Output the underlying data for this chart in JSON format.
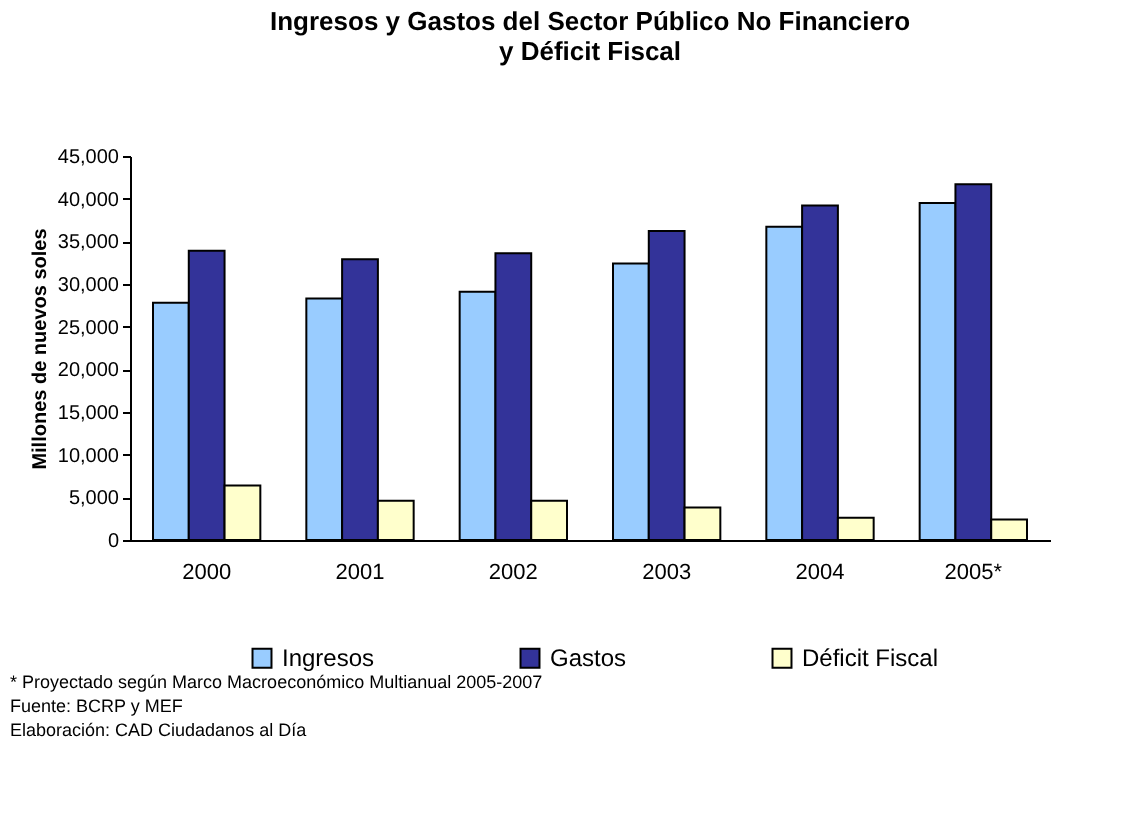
{
  "chart_data": {
    "type": "bar",
    "title": "Ingresos y Gastos del Sector Público No Financiero\ny Déficit Fiscal",
    "ylabel": "Millones de nuevos soles",
    "categories": [
      "2000",
      "2001",
      "2002",
      "2003",
      "2004",
      "2005*"
    ],
    "series": [
      {
        "name": "Ingresos",
        "color": "#99ccff",
        "values": [
          27800,
          28300,
          29100,
          32400,
          36700,
          39500
        ]
      },
      {
        "name": "Gastos",
        "color": "#333399",
        "values": [
          33900,
          32900,
          33600,
          36200,
          39200,
          41700
        ]
      },
      {
        "name": "Déficit Fiscal",
        "color": "#ffffcc",
        "values": [
          6400,
          4600,
          4600,
          3800,
          2600,
          2400
        ]
      }
    ],
    "ylim": [
      0,
      45000
    ],
    "yticks": [
      {
        "value": 0,
        "label": "0"
      },
      {
        "value": 5000,
        "label": "5,000"
      },
      {
        "value": 10000,
        "label": "10,000"
      },
      {
        "value": 15000,
        "label": "15,000"
      },
      {
        "value": 20000,
        "label": "20,000"
      },
      {
        "value": 25000,
        "label": "25,000"
      },
      {
        "value": 30000,
        "label": "30,000"
      },
      {
        "value": 35000,
        "label": "35,000"
      },
      {
        "value": 40000,
        "label": "40,000"
      },
      {
        "value": 45000,
        "label": "45,000"
      }
    ],
    "grid": false,
    "legend": "bottom",
    "annotations": [
      "* Proyectado según Marco Macroeconómico Multianual 2005-2007",
      "Fuente: BCRP y MEF",
      "Elaboración: CAD Ciudadanos al Día"
    ]
  }
}
